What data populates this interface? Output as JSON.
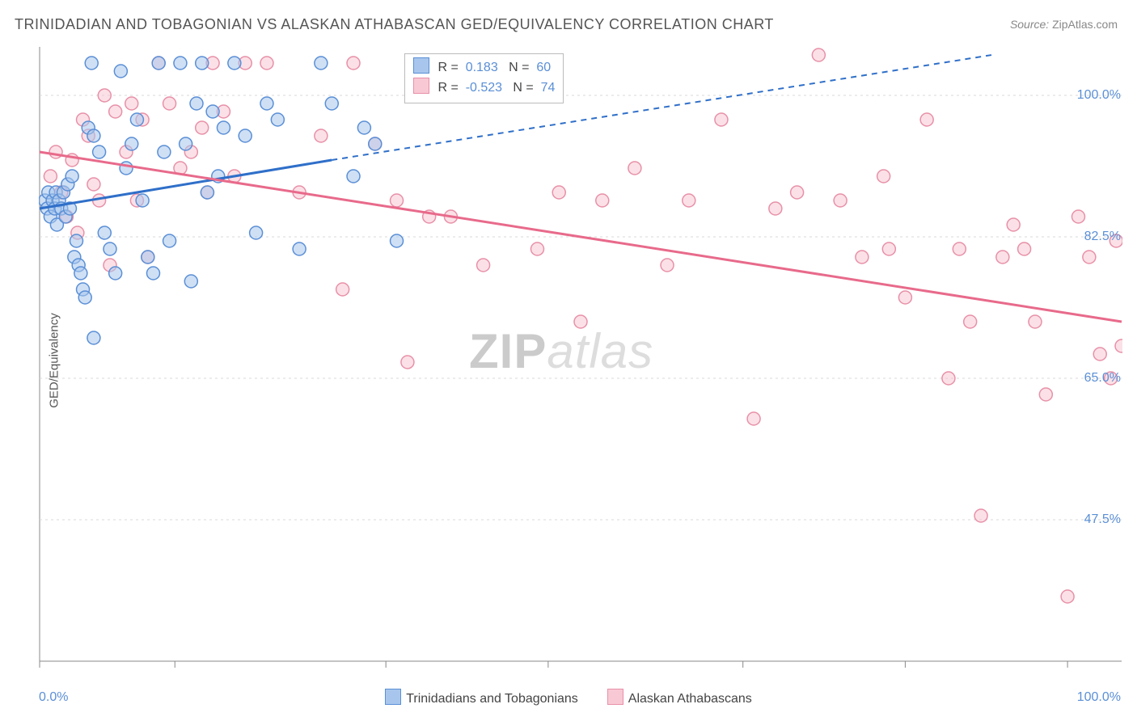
{
  "title": "TRINIDADIAN AND TOBAGONIAN VS ALASKAN ATHABASCAN GED/EQUIVALENCY CORRELATION CHART",
  "source": {
    "label": "Source:",
    "value": "ZipAtlas.com"
  },
  "y_axis_label": "GED/Equivalency",
  "watermark": {
    "part1": "ZIP",
    "part2": "atlas"
  },
  "colors": {
    "blue_fill": "#a8c6ed",
    "blue_stroke": "#5a8fd6",
    "blue_line": "#2f6fc9",
    "pink_fill": "#f8c9d4",
    "pink_stroke": "#e890a8",
    "pink_line": "#e86a8b",
    "grid": "#d9d9d9",
    "axis": "#888888",
    "tick_label": "#5a8fd6",
    "text": "#555555"
  },
  "chart": {
    "type": "scatter",
    "xlim": [
      0,
      100
    ],
    "ylim": [
      30,
      105
    ],
    "x_origin_label": "0.0%",
    "x_max_label": "100.0%",
    "ytick_labels": [
      "100.0%",
      "82.5%",
      "65.0%",
      "47.5%"
    ],
    "ytick_values": [
      100,
      82.5,
      65,
      47.5
    ],
    "xtick_values": [
      0,
      12.5,
      32,
      47,
      65,
      80,
      95
    ],
    "marker_radius": 8,
    "marker_stroke_width": 1.5,
    "marker_fill_opacity": 0.55,
    "line_width": 3,
    "grid_dash": "3,4"
  },
  "r_legend": {
    "rows": [
      {
        "swatch": "blue",
        "r_label": "R =",
        "r_value": "0.183",
        "n_label": "N =",
        "n_value": "60"
      },
      {
        "swatch": "pink",
        "r_label": "R =",
        "r_value": "-0.523",
        "n_label": "N =",
        "n_value": "74"
      }
    ]
  },
  "bottom_legend": {
    "items": [
      {
        "swatch": "blue",
        "label": "Trinidadians and Tobagonians"
      },
      {
        "swatch": "pink",
        "label": "Alaskan Athabascans"
      }
    ]
  },
  "series": {
    "blue": {
      "trend": {
        "x1": 0,
        "y1": 86,
        "x2_solid": 27,
        "y2_solid": 92,
        "x2_dash": 88,
        "y2_dash": 105
      },
      "points": [
        [
          0.5,
          87
        ],
        [
          0.7,
          86
        ],
        [
          0.8,
          88
        ],
        [
          1.0,
          85
        ],
        [
          1.2,
          87
        ],
        [
          1.4,
          86
        ],
        [
          1.5,
          88
        ],
        [
          1.6,
          84
        ],
        [
          1.8,
          87
        ],
        [
          2.0,
          86
        ],
        [
          2.2,
          88
        ],
        [
          2.4,
          85
        ],
        [
          2.6,
          89
        ],
        [
          2.8,
          86
        ],
        [
          3.0,
          90
        ],
        [
          3.2,
          80
        ],
        [
          3.4,
          82
        ],
        [
          3.6,
          79
        ],
        [
          3.8,
          78
        ],
        [
          4.0,
          76
        ],
        [
          4.2,
          75
        ],
        [
          4.5,
          96
        ],
        [
          4.8,
          104
        ],
        [
          5.0,
          95
        ],
        [
          5.5,
          93
        ],
        [
          6.0,
          83
        ],
        [
          6.5,
          81
        ],
        [
          7.0,
          78
        ],
        [
          7.5,
          103
        ],
        [
          8.0,
          91
        ],
        [
          8.5,
          94
        ],
        [
          9.0,
          97
        ],
        [
          9.5,
          87
        ],
        [
          10.0,
          80
        ],
        [
          10.5,
          78
        ],
        [
          11.0,
          104
        ],
        [
          11.5,
          93
        ],
        [
          12.0,
          82
        ],
        [
          13.0,
          104
        ],
        [
          13.5,
          94
        ],
        [
          14.0,
          77
        ],
        [
          14.5,
          99
        ],
        [
          15.0,
          104
        ],
        [
          15.5,
          88
        ],
        [
          16.0,
          98
        ],
        [
          16.5,
          90
        ],
        [
          17.0,
          96
        ],
        [
          18.0,
          104
        ],
        [
          19.0,
          95
        ],
        [
          20.0,
          83
        ],
        [
          21.0,
          99
        ],
        [
          22.0,
          97
        ],
        [
          24.0,
          81
        ],
        [
          26.0,
          104
        ],
        [
          27.0,
          99
        ],
        [
          29.0,
          90
        ],
        [
          30.0,
          96
        ],
        [
          31.0,
          94
        ],
        [
          33.0,
          82
        ],
        [
          5.0,
          70
        ]
      ]
    },
    "pink": {
      "trend": {
        "x1": 0,
        "y1": 93,
        "x2": 100,
        "y2": 72
      },
      "points": [
        [
          1.0,
          90
        ],
        [
          1.5,
          93
        ],
        [
          2.0,
          88
        ],
        [
          2.5,
          85
        ],
        [
          3.0,
          92
        ],
        [
          3.5,
          83
        ],
        [
          4.0,
          97
        ],
        [
          4.5,
          95
        ],
        [
          5.0,
          89
        ],
        [
          5.5,
          87
        ],
        [
          6.0,
          100
        ],
        [
          6.5,
          79
        ],
        [
          7.0,
          98
        ],
        [
          8.0,
          93
        ],
        [
          8.5,
          99
        ],
        [
          9.0,
          87
        ],
        [
          9.5,
          97
        ],
        [
          10.0,
          80
        ],
        [
          11.0,
          104
        ],
        [
          12.0,
          99
        ],
        [
          13.0,
          91
        ],
        [
          14.0,
          93
        ],
        [
          15.0,
          96
        ],
        [
          15.5,
          88
        ],
        [
          16.0,
          104
        ],
        [
          17.0,
          98
        ],
        [
          18.0,
          90
        ],
        [
          19.0,
          104
        ],
        [
          21.0,
          104
        ],
        [
          24.0,
          88
        ],
        [
          26.0,
          95
        ],
        [
          28.0,
          76
        ],
        [
          29.0,
          104
        ],
        [
          31.0,
          94
        ],
        [
          33.0,
          87
        ],
        [
          34.0,
          67
        ],
        [
          36.0,
          85
        ],
        [
          38.0,
          85
        ],
        [
          41.0,
          79
        ],
        [
          44.0,
          104
        ],
        [
          46.0,
          81
        ],
        [
          48.0,
          88
        ],
        [
          50.0,
          72
        ],
        [
          52.0,
          87
        ],
        [
          55.0,
          91
        ],
        [
          58.0,
          79
        ],
        [
          60.0,
          87
        ],
        [
          63.0,
          97
        ],
        [
          66.0,
          60
        ],
        [
          68.0,
          86
        ],
        [
          70.0,
          88
        ],
        [
          72.0,
          105
        ],
        [
          74.0,
          87
        ],
        [
          76.0,
          80
        ],
        [
          78.0,
          90
        ],
        [
          78.5,
          81
        ],
        [
          80.0,
          75
        ],
        [
          82.0,
          97
        ],
        [
          84.0,
          65
        ],
        [
          85.0,
          81
        ],
        [
          86.0,
          72
        ],
        [
          87.0,
          48
        ],
        [
          89.0,
          80
        ],
        [
          90.0,
          84
        ],
        [
          91.0,
          81
        ],
        [
          92.0,
          72
        ],
        [
          93.0,
          63
        ],
        [
          95.0,
          38
        ],
        [
          96.0,
          85
        ],
        [
          97.0,
          80
        ],
        [
          98.0,
          68
        ],
        [
          99.0,
          65
        ],
        [
          99.5,
          82
        ],
        [
          100.0,
          69
        ]
      ]
    }
  }
}
